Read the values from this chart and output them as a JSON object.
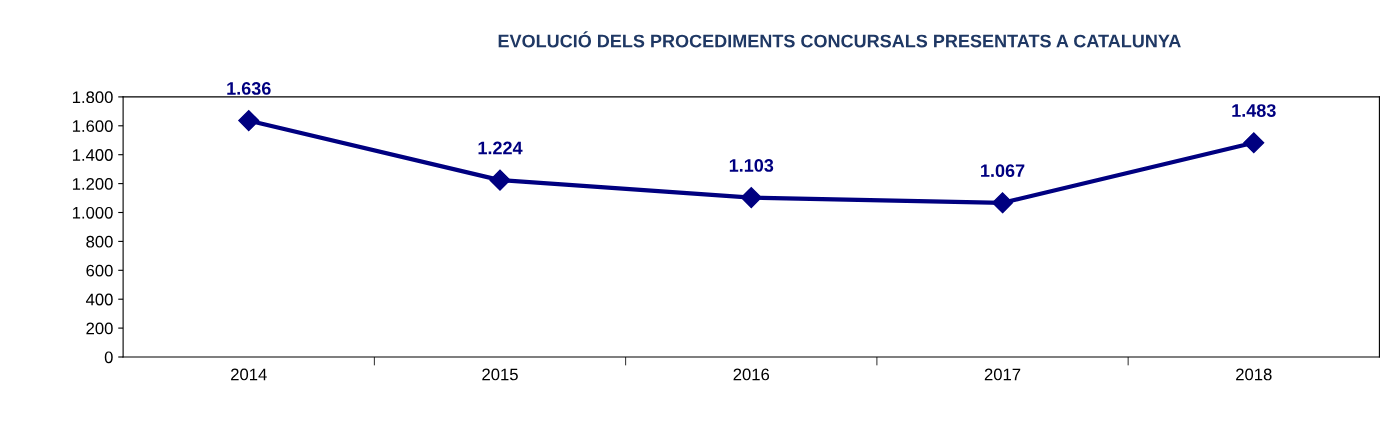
{
  "chart_data": {
    "type": "line",
    "title": "EVOLUCIÓ DELS PROCEDIMENTS CONCURSALS PRESENTATS A CATALUNYA",
    "categories": [
      "2014",
      "2015",
      "2016",
      "2017",
      "2018"
    ],
    "series": [
      {
        "color": "#000080",
        "values": [
          1636,
          1224,
          1103,
          1067,
          1483
        ],
        "value_labels": [
          "1.636",
          "1.224",
          "1.103",
          "1.067",
          "1.483"
        ]
      }
    ],
    "ylim": [
      0,
      1800
    ],
    "yticks": [
      {
        "value": 0,
        "label": "0"
      },
      {
        "value": 200,
        "label": "200"
      },
      {
        "value": 400,
        "label": "400"
      },
      {
        "value": 600,
        "label": "600"
      },
      {
        "value": 800,
        "label": "800"
      },
      {
        "value": 1000,
        "label": "1.000"
      },
      {
        "value": 1200,
        "label": "1.200"
      },
      {
        "value": 1400,
        "label": "1.400"
      },
      {
        "value": 1600,
        "label": "1.600"
      },
      {
        "value": 1800,
        "label": "1.800"
      }
    ],
    "marker": "diamond",
    "line_style": "solid",
    "grid": false,
    "legend": false
  }
}
